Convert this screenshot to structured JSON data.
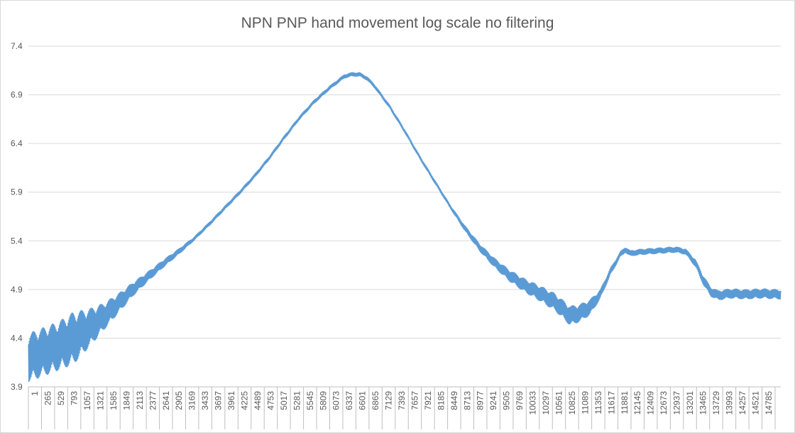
{
  "chart_data": {
    "type": "line",
    "title": "NPN PNP hand movement log scale no filtering",
    "xlabel": "",
    "ylabel": "",
    "ylim": [
      3.9,
      7.4
    ],
    "y_ticks": [
      "3.9",
      "4.4",
      "4.9",
      "5.4",
      "5.9",
      "6.4",
      "6.9",
      "7.4"
    ],
    "x_range": [
      1,
      15000
    ],
    "x_ticks": [
      "1",
      "265",
      "529",
      "793",
      "1057",
      "1321",
      "1585",
      "1849",
      "2113",
      "2377",
      "2641",
      "2905",
      "3169",
      "3433",
      "3697",
      "3961",
      "4225",
      "4489",
      "4753",
      "5017",
      "5281",
      "5545",
      "5809",
      "6073",
      "6337",
      "6601",
      "6865",
      "7129",
      "7393",
      "7657",
      "7921",
      "8185",
      "8449",
      "8713",
      "8977",
      "9241",
      "9505",
      "9769",
      "10033",
      "10297",
      "10561",
      "10825",
      "11089",
      "11353",
      "11617",
      "11881",
      "12145",
      "12409",
      "12673",
      "12937",
      "13201",
      "13465",
      "13729",
      "13993",
      "14257",
      "14521",
      "14785"
    ],
    "grid": true,
    "legend": "none",
    "color": "#5b9bd5",
    "series": [
      {
        "x": [
          1,
          300,
          600,
          900,
          1200,
          1500,
          1800,
          2100,
          2400,
          2700,
          3000,
          3300,
          3600,
          3900,
          4200,
          4500,
          4800,
          5100,
          5400,
          5700,
          6000,
          6300,
          6450,
          6600,
          6750,
          6900,
          7200,
          7500,
          7800,
          8100,
          8400,
          8700,
          9000,
          9300,
          9600,
          9900,
          10200,
          10500,
          10800,
          11000,
          11200,
          11400,
          11600,
          11800,
          11900,
          12000,
          12100,
          12300,
          12600,
          12900,
          13100,
          13300,
          13450,
          13600,
          13750,
          14000,
          14300,
          14600,
          15000
        ],
        "y": [
          4.2,
          4.26,
          4.32,
          4.4,
          4.5,
          4.62,
          4.76,
          4.91,
          5.04,
          5.17,
          5.29,
          5.42,
          5.57,
          5.73,
          5.89,
          6.06,
          6.25,
          6.46,
          6.66,
          6.83,
          6.97,
          7.09,
          7.11,
          7.11,
          7.07,
          6.99,
          6.78,
          6.53,
          6.26,
          6.01,
          5.76,
          5.53,
          5.33,
          5.17,
          5.04,
          4.94,
          4.86,
          4.77,
          4.63,
          4.66,
          4.72,
          4.85,
          5.08,
          5.26,
          5.31,
          5.27,
          5.28,
          5.29,
          5.3,
          5.31,
          5.29,
          5.17,
          5.0,
          4.88,
          4.84,
          4.86,
          4.85,
          4.86,
          4.85
        ],
        "noise": [
          0.25,
          0.25,
          0.25,
          0.27,
          0.2,
          0.14,
          0.1,
          0.07,
          0.05,
          0.04,
          0.03,
          0.02,
          0.02,
          0.02,
          0.02,
          0.02,
          0.02,
          0.02,
          0.02,
          0.02,
          0.02,
          0.02,
          0.02,
          0.02,
          0.02,
          0.02,
          0.02,
          0.02,
          0.02,
          0.02,
          0.02,
          0.03,
          0.04,
          0.05,
          0.06,
          0.07,
          0.08,
          0.09,
          0.1,
          0.09,
          0.08,
          0.05,
          0.04,
          0.03,
          0.03,
          0.03,
          0.03,
          0.03,
          0.03,
          0.03,
          0.03,
          0.04,
          0.05,
          0.05,
          0.05,
          0.05,
          0.05,
          0.05,
          0.05
        ]
      }
    ]
  }
}
